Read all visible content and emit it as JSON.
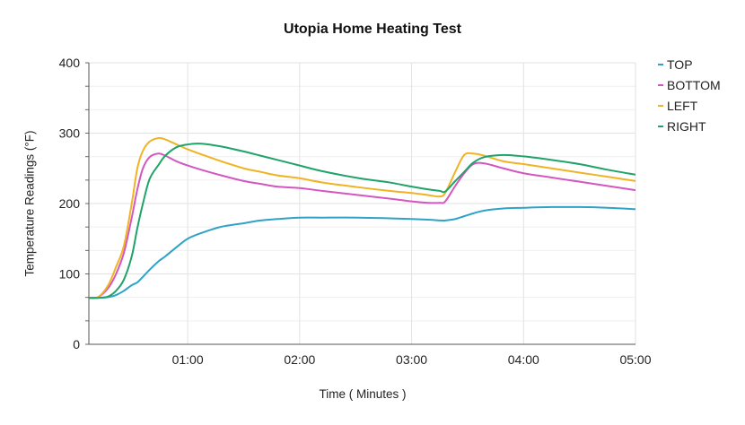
{
  "chart_data": {
    "type": "line",
    "title": "Utopia Home Heating Test",
    "xlabel": "Time ( Minutes )",
    "ylabel": "Temperature Readings (°F)",
    "x_unit": "minutes",
    "xlim": [
      0.117,
      5.0
    ],
    "ylim": [
      0,
      400
    ],
    "x_tick_labels": [
      "01:00",
      "02:00",
      "03:00",
      "04:00",
      "05:00"
    ],
    "x_ticks": [
      1,
      2,
      3,
      4,
      5
    ],
    "y_ticks": [
      0,
      100,
      200,
      300,
      400
    ],
    "y_minor_step": 33.33,
    "grid": true,
    "legend_position": "right",
    "x": [
      0.12,
      0.2,
      0.29,
      0.36,
      0.43,
      0.5,
      0.55,
      0.6,
      0.66,
      0.74,
      0.8,
      0.9,
      1.0,
      1.12,
      1.3,
      1.5,
      1.65,
      1.8,
      2.0,
      2.2,
      2.53,
      2.8,
      3.0,
      3.15,
      3.25,
      3.3,
      3.39,
      3.47,
      3.55,
      3.65,
      3.82,
      4.0,
      4.25,
      4.5,
      4.75,
      5.0
    ],
    "series": [
      {
        "name": "TOP",
        "color": "#2FA3C6",
        "values": [
          66,
          66,
          67,
          70,
          76,
          84,
          88,
          96,
          106,
          118,
          125,
          138,
          150,
          158,
          167,
          172,
          176,
          178,
          180,
          180,
          180,
          179,
          178,
          177,
          176,
          176,
          178,
          182,
          186,
          190,
          193,
          194,
          195,
          195,
          194,
          192
        ]
      },
      {
        "name": "BOTTOM",
        "color": "#D456C0",
        "values": [
          66,
          67,
          80,
          100,
          130,
          180,
          220,
          250,
          266,
          271,
          268,
          260,
          254,
          248,
          240,
          232,
          228,
          224,
          222,
          218,
          212,
          207,
          203,
          201,
          201,
          203,
          225,
          243,
          256,
          257,
          250,
          243,
          237,
          231,
          225,
          219
        ]
      },
      {
        "name": "LEFT",
        "color": "#F0B323",
        "values": [
          66,
          67,
          84,
          110,
          140,
          200,
          250,
          275,
          288,
          293,
          291,
          284,
          277,
          270,
          260,
          250,
          245,
          240,
          236,
          230,
          223,
          218,
          215,
          212,
          210,
          215,
          245,
          269,
          271,
          268,
          260,
          256,
          250,
          244,
          238,
          232
        ]
      },
      {
        "name": "RIGHT",
        "color": "#1FA368",
        "values": [
          66,
          66,
          68,
          76,
          92,
          125,
          165,
          200,
          235,
          255,
          268,
          280,
          284,
          285,
          281,
          274,
          268,
          262,
          254,
          246,
          236,
          230,
          224,
          220,
          218,
          217,
          232,
          245,
          258,
          266,
          269,
          267,
          262,
          256,
          248,
          241
        ]
      }
    ]
  },
  "title": "Utopia Home Heating Test",
  "axes": {
    "xlabel": "Time ( Minutes )",
    "ylabel": "Temperature Readings (°F)",
    "y_tick_labels": [
      "0",
      "100",
      "200",
      "300",
      "400"
    ],
    "x_tick_labels": [
      "01:00",
      "02:00",
      "03:00",
      "04:00",
      "05:00"
    ]
  },
  "legend": {
    "items": [
      {
        "label": "TOP",
        "color": "#2FA3C6"
      },
      {
        "label": "BOTTOM",
        "color": "#D456C0"
      },
      {
        "label": "LEFT",
        "color": "#F0B323"
      },
      {
        "label": "RIGHT",
        "color": "#1FA368"
      }
    ]
  }
}
